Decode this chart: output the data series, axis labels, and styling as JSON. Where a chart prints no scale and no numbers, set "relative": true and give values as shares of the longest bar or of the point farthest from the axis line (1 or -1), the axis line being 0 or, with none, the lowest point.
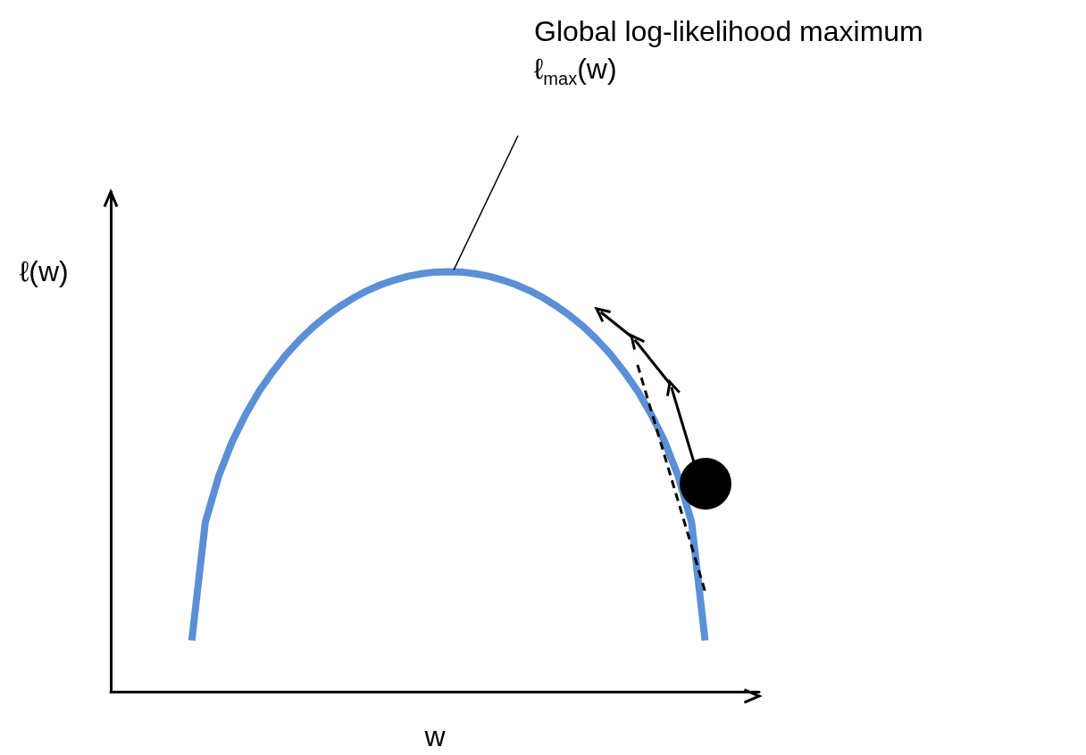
{
  "chart_data": {
    "type": "line",
    "relative": true,
    "xlabel": "w",
    "ylabel": "ℓ(w)",
    "grid": false,
    "marker": "none",
    "categories": [
      null,
      null,
      null,
      null,
      null,
      null,
      null,
      null,
      null,
      null,
      null,
      null,
      null,
      null,
      null,
      null,
      null,
      null,
      null,
      null,
      null,
      null,
      null,
      null,
      null,
      null,
      null,
      null,
      null,
      null,
      null,
      null,
      null,
      null,
      null,
      null,
      null,
      null,
      null,
      null,
      null,
      null,
      null,
      null,
      null,
      null,
      null,
      null,
      null
    ],
    "series": [
      {
        "type": "line",
        "color": "#5b8fd6",
        "line_style": "solid",
        "values": [
          null,
          null,
          null,
          null,
          null,
          null,
          0.122,
          0.403,
          0.514,
          0.596,
          0.661,
          0.716,
          0.762,
          0.803,
          0.838,
          0.869,
          0.895,
          0.918,
          0.938,
          0.955,
          0.969,
          0.98,
          0.989,
          0.995,
          0.999,
          1,
          0.999,
          0.995,
          0.989,
          0.98,
          0.969,
          0.955,
          0.938,
          0.918,
          0.895,
          0.869,
          0.838,
          0.803,
          0.762,
          0.716,
          0.661,
          0.596,
          0.514,
          0.403,
          0.122,
          null,
          null,
          null,
          null
        ]
      },
      {
        "type": "line",
        "color": "#000000",
        "line_style": "dashed",
        "values": [
          null,
          null,
          null,
          null,
          null,
          null,
          null,
          null,
          null,
          null,
          null,
          null,
          null,
          null,
          null,
          null,
          null,
          null,
          null,
          null,
          null,
          null,
          null,
          null,
          null,
          null,
          null,
          null,
          null,
          null,
          null,
          null,
          null,
          null,
          null,
          null,
          null,
          null,
          null,
          0.778,
          0.67,
          0.562,
          0.454,
          0.346,
          0.238,
          null,
          null,
          null,
          null
        ]
      }
    ],
    "annotations": [
      "Global log-likelihood maximum\nℓ$_{max}$(w)"
    ]
  }
}
